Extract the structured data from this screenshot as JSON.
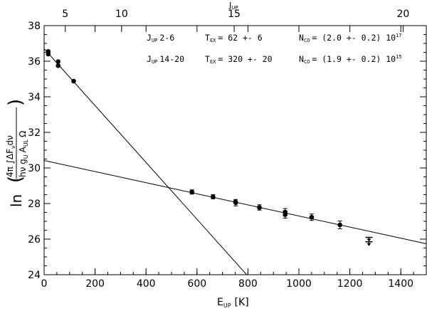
{
  "chart_data": {
    "type": "scatter",
    "xlabel_main": "E",
    "xlabel_sub": "UP",
    "xlabel_unit": "[K]",
    "toplabel_main": "J",
    "toplabel_sub": "UP",
    "ylabel": "ln(4π∫ΔF_ν dν / hν g_U A_UL Ω)",
    "ylabel_ln": "ln",
    "ylabel_num": "4π ∫ΔF",
    "ylabel_num_sub": "ν",
    "ylabel_num_tail": "dν",
    "ylabel_den": "hν g",
    "ylabel_den_sub_u": "U",
    "ylabel_den_A": "A",
    "ylabel_den_sub_ul": "UL",
    "ylabel_den_omega": "Ω",
    "xlim": [
      0,
      1500
    ],
    "ylim": [
      24,
      38
    ],
    "x_ticks": [
      0,
      200,
      400,
      600,
      800,
      1000,
      1200,
      1400
    ],
    "y_ticks": [
      24,
      26,
      28,
      30,
      32,
      34,
      36,
      38
    ],
    "top_ticks": [
      5,
      10,
      15,
      20
    ],
    "top_tick_positions_K": [
      83,
      304,
      746,
      1409
    ],
    "grid": false,
    "annotations": [
      {
        "jlabel": "J",
        "jsub": "UP",
        "range": "2-6",
        "tlabel": "T",
        "tsub": "EX",
        "tval": "= 62 +- 6",
        "nlabel": "N",
        "nsub": "CO",
        "nval": "= (2.0 +- 0.2) 10",
        "exp": "17"
      },
      {
        "jlabel": "J",
        "jsub": "UP",
        "range": "14-20",
        "tlabel": "T",
        "tsub": "EX",
        "tval": "= 320 +- 20",
        "nlabel": "N",
        "nsub": "CO",
        "nval": "= (1.9 +- 0.2) 10",
        "exp": "15"
      }
    ],
    "series": [
      {
        "points": [
          {
            "x": 16,
            "y": 36.55,
            "err": 0.0
          },
          {
            "x": 16,
            "y": 36.4,
            "err": 0.0
          },
          {
            "x": 55,
            "y": 35.98,
            "err": 0.0
          },
          {
            "x": 55,
            "y": 35.75,
            "err": 0.0
          },
          {
            "x": 116,
            "y": 34.88,
            "err": 0.0
          }
        ],
        "fit": {
          "x0": 0,
          "y0": 36.7,
          "x1": 795,
          "y1": 24.0
        }
      },
      {
        "points": [
          {
            "x": 580,
            "y": 28.65,
            "err": 0.12
          },
          {
            "x": 663,
            "y": 28.38,
            "err": 0.12
          },
          {
            "x": 752,
            "y": 28.05,
            "err": 0.18
          },
          {
            "x": 751,
            "y": 28.1,
            "err": 0.0
          },
          {
            "x": 845,
            "y": 27.78,
            "err": 0.15
          },
          {
            "x": 946,
            "y": 27.52,
            "err": 0.2
          },
          {
            "x": 946,
            "y": 27.38,
            "err": 0.2
          },
          {
            "x": 1050,
            "y": 27.23,
            "err": 0.18
          },
          {
            "x": 1161,
            "y": 26.8,
            "err": 0.22
          }
        ],
        "upper_limits": [
          {
            "x": 1275,
            "y": 26.1
          },
          {
            "x": 1275,
            "y": 25.85
          }
        ],
        "fit": {
          "x0": 0,
          "y0": 30.42,
          "x1": 1500,
          "y1": 25.74
        }
      }
    ]
  }
}
